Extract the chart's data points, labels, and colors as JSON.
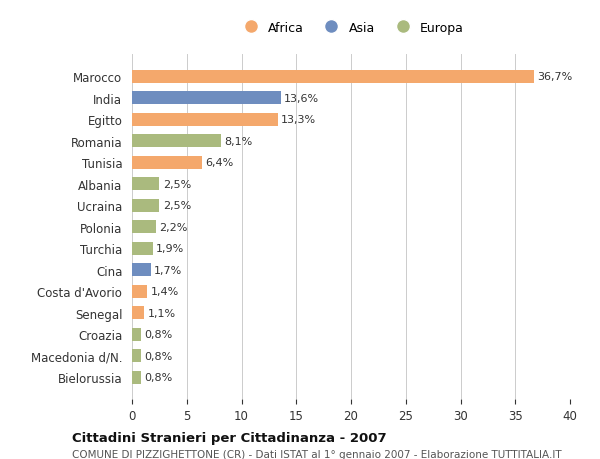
{
  "categories": [
    "Marocco",
    "India",
    "Egitto",
    "Romania",
    "Tunisia",
    "Albania",
    "Ucraina",
    "Polonia",
    "Turchia",
    "Cina",
    "Costa d'Avorio",
    "Senegal",
    "Croazia",
    "Macedonia d/N.",
    "Bielorussia"
  ],
  "values": [
    36.7,
    13.6,
    13.3,
    8.1,
    6.4,
    2.5,
    2.5,
    2.2,
    1.9,
    1.7,
    1.4,
    1.1,
    0.8,
    0.8,
    0.8
  ],
  "labels": [
    "36,7%",
    "13,6%",
    "13,3%",
    "8,1%",
    "6,4%",
    "2,5%",
    "2,5%",
    "2,2%",
    "1,9%",
    "1,7%",
    "1,4%",
    "1,1%",
    "0,8%",
    "0,8%",
    "0,8%"
  ],
  "continents": [
    "Africa",
    "Asia",
    "Africa",
    "Europa",
    "Africa",
    "Europa",
    "Europa",
    "Europa",
    "Europa",
    "Asia",
    "Africa",
    "Africa",
    "Europa",
    "Europa",
    "Europa"
  ],
  "colors": {
    "Africa": "#F4A86C",
    "Asia": "#6E8DBF",
    "Europa": "#AABA7E"
  },
  "legend_labels": [
    "Africa",
    "Asia",
    "Europa"
  ],
  "xlim": [
    0,
    40
  ],
  "xticks": [
    0,
    5,
    10,
    15,
    20,
    25,
    30,
    35,
    40
  ],
  "title": "Cittadini Stranieri per Cittadinanza - 2007",
  "subtitle": "COMUNE DI PIZZIGHETTONE (CR) - Dati ISTAT al 1° gennaio 2007 - Elaborazione TUTTITALIA.IT",
  "background_color": "#ffffff",
  "grid_color": "#cccccc",
  "bar_height": 0.6
}
